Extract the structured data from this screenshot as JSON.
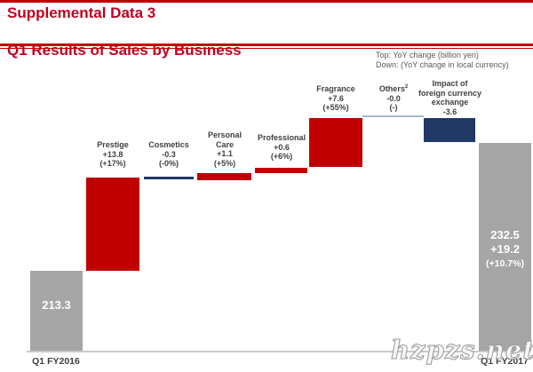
{
  "header": {
    "title_line1": "Supplemental Data 3",
    "title_line2": "Q1 Results of Sales by Business"
  },
  "legend_note": {
    "line1": "Top: YoY change (billion yen)",
    "line2": "Down: (YoY change in local currency)"
  },
  "chart_data": {
    "type": "bar",
    "subtype": "waterfall",
    "unit": "billion yen",
    "start": {
      "label": "Q1 FY2016",
      "value": 213.3
    },
    "end": {
      "label": "Q1 FY2017",
      "value": 232.5,
      "yoy_change": "+19.2",
      "yoy_change_pct": "(+10.7%)"
    },
    "steps": [
      {
        "name": "Prestige",
        "name_wrapped": "Prestige",
        "superscript": "",
        "change": "+13.8",
        "change_numeric": 13.8,
        "local_currency_pct": "(+17%)"
      },
      {
        "name": "Cosmetics",
        "name_wrapped": "Cosmetics",
        "superscript": "",
        "change": "-0.3",
        "change_numeric": -0.3,
        "local_currency_pct": "(-0%)"
      },
      {
        "name": "Personal Care",
        "name_wrapped": "Personal\nCare",
        "superscript": "",
        "change": "+1.1",
        "change_numeric": 1.1,
        "local_currency_pct": "(+5%)"
      },
      {
        "name": "Professional",
        "name_wrapped": "Professional",
        "superscript": "",
        "change": "+0.6",
        "change_numeric": 0.6,
        "local_currency_pct": "(+6%)"
      },
      {
        "name": "Fragrance",
        "name_wrapped": "Fragrance",
        "superscript": "",
        "change": "+7.6",
        "change_numeric": 7.6,
        "local_currency_pct": "(+55%)"
      },
      {
        "name": "Others",
        "name_wrapped": "Others",
        "superscript": "2",
        "change": "-0.0",
        "change_numeric": 0.0,
        "local_currency_pct": "(-)"
      },
      {
        "name": "Impact of foreign currency exchange",
        "name_wrapped": "Impact of\nforeign currency\nexchange",
        "superscript": "",
        "change": "-3.6",
        "change_numeric": -3.6,
        "local_currency_pct": ""
      }
    ],
    "running_levels": [
      213.3,
      227.1,
      226.8,
      227.9,
      228.5,
      236.1,
      236.1,
      232.5
    ],
    "legend_position": "top-right",
    "grid": false
  },
  "colors": {
    "increase_bar": "#c00000",
    "decrease_bar": "#1f3864",
    "zero_line_others": "#a7b9cc",
    "total_bar": "#a6a6a6",
    "title_red": "#c00020",
    "axis_line": "#c9c9c9",
    "label_text": "#404040",
    "note_text": "#595959"
  },
  "watermark": "hzpzs.net"
}
